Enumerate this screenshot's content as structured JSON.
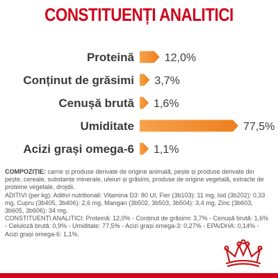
{
  "title": "CONSTITUENȚI ANALITICI",
  "colors": {
    "title": "#d0021b",
    "label": "#3a3a3a",
    "bar_start": "#f6a24a",
    "bar_end": "#ee7f1f",
    "bottom_line": "#d0021b",
    "logo": "#c4171b"
  },
  "chart_data": {
    "type": "bar",
    "orientation": "horizontal",
    "categories": [
      "Proteină",
      "Conținut de grăsimi",
      "Cenușă brută",
      "Umiditate",
      "Acizi grași omega-6"
    ],
    "values": [
      12.0,
      3.7,
      1.6,
      77.5,
      1.1
    ],
    "value_labels": [
      "12,0%",
      "3,7%",
      "1,6%",
      "77,5%",
      "1,1%"
    ],
    "unit": "%",
    "xlim": [
      0,
      77.5
    ],
    "grid": false,
    "legend": "none"
  },
  "composition": {
    "label": "COMPOZIȚIE:",
    "text": " carne și produse derivate de origine animală, pește și produse derivate din pește, cereale, substanțe minerale, uleiuri și grăsimi, produse de origine vegetală, extracte de proteine vegetale, drojdii.",
    "additives": "ADITIVI (per kg): Aditivi nutritionali: Vitamina D3: 80 UI, Fier (3b103): 11 mg, Iod (3b202): 0,33 mg, Cupru (3b405, 3b406): 2,6 mg, Mangan (3b502, 3b503, 3b504): 3,4 mg, Zinc (3b603, 3b605, 3b606): 34 mg.",
    "constituents": "CONSTITUENȚI ANALITICI: Proteină: 12,0% - Conținut de grăsimi: 3,7% - Cenușă brută: 1,6% - Celuloză brută: 0,9% - Umiditate: 77,5% - Acizi grași omega-3: 0,27% - EPA/DHA: 0,14% - Acizi grași omega-6: 1,1%."
  },
  "logo": {
    "icon": "royal-crown-icon"
  }
}
